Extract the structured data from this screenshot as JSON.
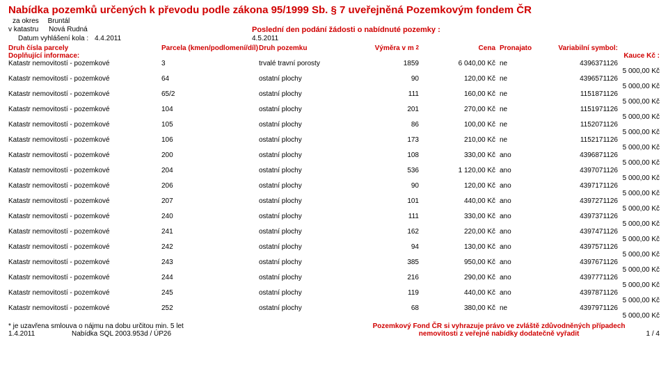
{
  "title": "Nabídka pozemků určených k převodu podle zákona 95/1999 Sb. § 7 uveřejněná Pozemkovým fondem ČR",
  "meta": {
    "za_okres_label": "za okres",
    "za_okres_value": "Bruntál",
    "v_katastru_label": "v katastru",
    "v_katastru_value": "Nová Rudná",
    "right_label": "Poslední den podání žádosti o nabídnuté pozemky :",
    "datum_label": "Datum vyhlášení kola :",
    "datum_value": "4.4.2011",
    "right_date": "4.5.2011"
  },
  "headers": {
    "druh_parcely": "Druh čísla parcely",
    "parcela": "Parcela (kmen/podlomení/díl)",
    "druh_pozemku": "Druh pozemku",
    "vymera": "Výměra v m",
    "vymera_sup": "2",
    "cena": "Cena",
    "pronajato": "Pronajato",
    "var_symbol": "Variabilní symbol:",
    "dopl_info": "Doplňující informace:",
    "kauce": "Kauce Kč :"
  },
  "common_desc": "Katastr nemovitostí - pozemkové",
  "common_sub": "5 000,00 Kč",
  "rows": [
    {
      "parcela": "3",
      "typ": "trvalé travní porosty",
      "area": "1859",
      "price": "6 040,00 Kč",
      "rent": "ne",
      "vs": "4396371126"
    },
    {
      "parcela": "64",
      "typ": "ostatní plochy",
      "area": "90",
      "price": "120,00 Kč",
      "rent": "ne",
      "vs": "4396571126"
    },
    {
      "parcela": "65/2",
      "typ": "ostatní plochy",
      "area": "111",
      "price": "160,00 Kč",
      "rent": "ne",
      "vs": "1151871126"
    },
    {
      "parcela": "104",
      "typ": "ostatní plochy",
      "area": "201",
      "price": "270,00 Kč",
      "rent": "ne",
      "vs": "1151971126"
    },
    {
      "parcela": "105",
      "typ": "ostatní plochy",
      "area": "86",
      "price": "100,00 Kč",
      "rent": "ne",
      "vs": "1152071126"
    },
    {
      "parcela": "106",
      "typ": "ostatní plochy",
      "area": "173",
      "price": "210,00 Kč",
      "rent": "ne",
      "vs": "1152171126"
    },
    {
      "parcela": "200",
      "typ": "ostatní plochy",
      "area": "108",
      "price": "330,00 Kč",
      "rent": "ano",
      "vs": "4396871126"
    },
    {
      "parcela": "204",
      "typ": "ostatní plochy",
      "area": "536",
      "price": "1 120,00 Kč",
      "rent": "ano",
      "vs": "4397071126"
    },
    {
      "parcela": "206",
      "typ": "ostatní plochy",
      "area": "90",
      "price": "120,00 Kč",
      "rent": "ano",
      "vs": "4397171126"
    },
    {
      "parcela": "207",
      "typ": "ostatní plochy",
      "area": "101",
      "price": "440,00 Kč",
      "rent": "ano",
      "vs": "4397271126"
    },
    {
      "parcela": "240",
      "typ": "ostatní plochy",
      "area": "111",
      "price": "330,00 Kč",
      "rent": "ano",
      "vs": "4397371126"
    },
    {
      "parcela": "241",
      "typ": "ostatní plochy",
      "area": "162",
      "price": "220,00 Kč",
      "rent": "ano",
      "vs": "4397471126"
    },
    {
      "parcela": "242",
      "typ": "ostatní plochy",
      "area": "94",
      "price": "130,00 Kč",
      "rent": "ano",
      "vs": "4397571126"
    },
    {
      "parcela": "243",
      "typ": "ostatní plochy",
      "area": "385",
      "price": "950,00 Kč",
      "rent": "ano",
      "vs": "4397671126"
    },
    {
      "parcela": "244",
      "typ": "ostatní plochy",
      "area": "216",
      "price": "290,00 Kč",
      "rent": "ano",
      "vs": "4397771126"
    },
    {
      "parcela": "245",
      "typ": "ostatní plochy",
      "area": "119",
      "price": "440,00 Kč",
      "rent": "ano",
      "vs": "4397871126"
    },
    {
      "parcela": "252",
      "typ": "ostatní plochy",
      "area": "68",
      "price": "380,00 Kč",
      "rent": "ne",
      "vs": "4397971126"
    }
  ],
  "footer": {
    "left1": "* je uzavřena smlouva o nájmu na dobu určitou min. 5 let",
    "left2_a": "1.4.2011",
    "left2_b": "Nabídka SQL 2003.953d / ÚP26",
    "right1": "Pozemkový Fond ČR si vyhrazuje právo ve zvláště zdůvodněných případech",
    "right2": "nemovitosti z veřejné nabídky dodatečně vyřadit",
    "page": "1 / 4"
  }
}
